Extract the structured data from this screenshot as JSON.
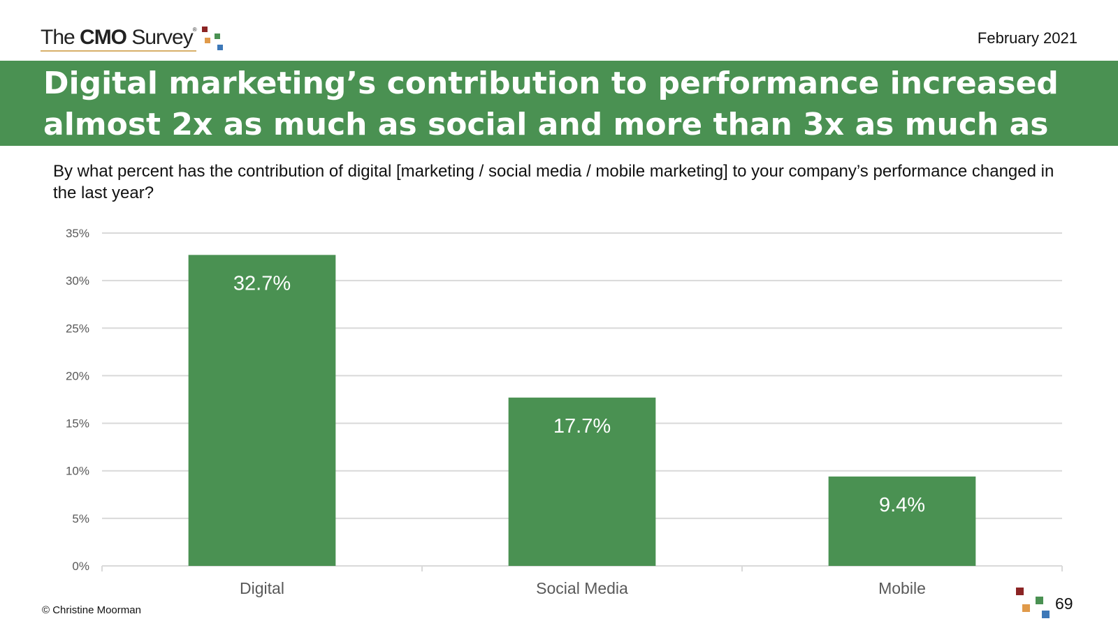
{
  "header": {
    "logo": {
      "pre": "The ",
      "bold": "CMO",
      "post": " Survey",
      "mark": "®"
    },
    "date": "February 2021"
  },
  "title": "Digital marketing’s contribution to performance increased almost 2x as much as social and more than 3x as much as mobile marketing",
  "question": "By what percent has the contribution of digital [marketing / social media / mobile marketing] to your company’s performance changed in the last year?",
  "footer": {
    "copyright": "© Christine Moorman",
    "page": "69"
  },
  "colors": {
    "brand_green": "#4a9152",
    "bar": "#4a9152",
    "sq_red": "#8b2424",
    "sq_orange": "#e09a4a",
    "sq_green": "#4a9152",
    "sq_blue": "#3d78b8"
  },
  "chart_data": {
    "type": "bar",
    "title": "",
    "xlabel": "",
    "ylabel": "",
    "categories": [
      "Digital",
      "Social Media",
      "Mobile"
    ],
    "values": [
      32.7,
      17.7,
      9.4
    ],
    "data_labels": [
      "32.7%",
      "17.7%",
      "9.4%"
    ],
    "ylim": [
      0,
      35
    ],
    "yticks": [
      0,
      5,
      10,
      15,
      20,
      25,
      30,
      35
    ],
    "ytick_labels": [
      "0%",
      "5%",
      "10%",
      "15%",
      "20%",
      "25%",
      "30%",
      "35%"
    ],
    "grid": true,
    "legend": "none"
  }
}
